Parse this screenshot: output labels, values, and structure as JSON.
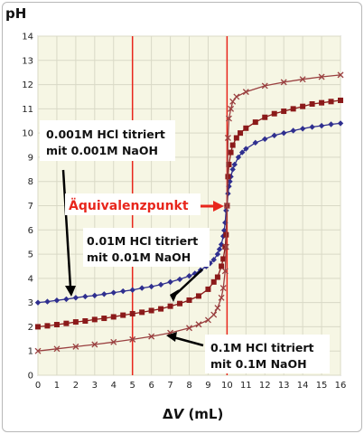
{
  "chart_data": {
    "type": "line",
    "title": "",
    "ylabel": "pH",
    "xlabel_delta": "Δ",
    "xlabel_var": "V",
    "xlabel_unit": " (mL)",
    "xlim": [
      0,
      16
    ],
    "ylim": [
      0,
      14
    ],
    "xticks": [
      0,
      1,
      2,
      3,
      4,
      5,
      6,
      7,
      8,
      9,
      10,
      11,
      12,
      13,
      14,
      15,
      16
    ],
    "yticks": [
      0,
      1,
      2,
      3,
      4,
      5,
      6,
      7,
      8,
      9,
      10,
      11,
      12,
      13,
      14
    ],
    "grid": true,
    "reference_lines_x": [
      5,
      10
    ],
    "series": [
      {
        "name": "0.001M HCl titriert mit 0.001M NaOH",
        "color": "#2f2f8f",
        "marker": "diamond",
        "x": [
          0,
          0.5,
          1,
          1.5,
          2,
          2.5,
          3,
          3.5,
          4,
          4.5,
          5,
          5.5,
          6,
          6.5,
          7,
          7.5,
          8,
          8.3,
          8.6,
          8.9,
          9.1,
          9.3,
          9.5,
          9.6,
          9.7,
          9.8,
          9.85,
          9.9,
          9.95,
          10,
          10.05,
          10.1,
          10.15,
          10.2,
          10.3,
          10.4,
          10.6,
          10.8,
          11,
          11.5,
          12,
          12.5,
          13,
          13.5,
          14,
          14.5,
          15,
          15.5,
          16
        ],
        "y": [
          3.0,
          3.04,
          3.09,
          3.14,
          3.2,
          3.25,
          3.29,
          3.35,
          3.41,
          3.47,
          3.52,
          3.6,
          3.66,
          3.74,
          3.85,
          3.96,
          4.1,
          4.2,
          4.34,
          4.49,
          4.62,
          4.77,
          5.0,
          5.2,
          5.4,
          5.74,
          5.98,
          6.3,
          6.8,
          7.0,
          7.5,
          7.8,
          8.0,
          8.2,
          8.5,
          8.7,
          9.0,
          9.2,
          9.35,
          9.6,
          9.75,
          9.9,
          10.0,
          10.1,
          10.18,
          10.25,
          10.3,
          10.36,
          10.4
        ]
      },
      {
        "name": "0.01M HCl titriert mit 0.01M NaOH",
        "color": "#8b1a1a",
        "marker": "square",
        "x": [
          0,
          0.5,
          1,
          1.5,
          2,
          2.5,
          3,
          3.5,
          4,
          4.5,
          5,
          5.5,
          6,
          6.5,
          7,
          7.5,
          8,
          8.5,
          9,
          9.3,
          9.5,
          9.7,
          9.8,
          9.9,
          9.95,
          10,
          10.05,
          10.1,
          10.2,
          10.3,
          10.5,
          10.7,
          11,
          11.5,
          12,
          12.5,
          13,
          13.5,
          14,
          14.5,
          15,
          15.5,
          16
        ],
        "y": [
          2.0,
          2.04,
          2.09,
          2.14,
          2.2,
          2.24,
          2.3,
          2.35,
          2.41,
          2.48,
          2.54,
          2.6,
          2.67,
          2.74,
          2.85,
          2.96,
          3.1,
          3.27,
          3.55,
          3.85,
          4.05,
          4.5,
          4.8,
          5.3,
          5.8,
          7.0,
          8.2,
          8.7,
          9.2,
          9.5,
          9.8,
          10.0,
          10.2,
          10.45,
          10.65,
          10.8,
          10.9,
          11.0,
          11.1,
          11.2,
          11.25,
          11.3,
          11.35
        ]
      },
      {
        "name": "0.1M HCl titriert mit 0.1M NaOH",
        "color": "#9a4040",
        "marker": "x",
        "x": [
          0,
          1,
          2,
          3,
          4,
          5,
          6,
          7,
          8,
          8.5,
          9,
          9.3,
          9.5,
          9.7,
          9.8,
          9.9,
          9.95,
          10,
          10.05,
          10.1,
          10.2,
          10.3,
          10.5,
          11,
          12,
          13,
          14,
          15,
          16
        ],
        "y": [
          1.0,
          1.09,
          1.18,
          1.27,
          1.37,
          1.48,
          1.6,
          1.75,
          1.95,
          2.1,
          2.28,
          2.5,
          2.78,
          3.2,
          3.6,
          4.3,
          5.3,
          7.0,
          9.8,
          10.6,
          11.0,
          11.3,
          11.5,
          11.7,
          11.95,
          12.1,
          12.22,
          12.32,
          12.4
        ]
      }
    ],
    "annotations": {
      "a001_line1": "0.001M HCl titriert",
      "a001_line2": "mit 0.001M NaOH",
      "a01_line1": "0.01M HCl titriert",
      "a01_line2": "mit 0.01M NaOH",
      "a1_line1": "0.1M HCl titriert",
      "a1_line2": "mit 0.1M NaOH",
      "equivalence": "Äquivalenzpunkt"
    },
    "colors": {
      "plot_background": "#f6f6e4",
      "grid": "#d9d9c6",
      "reference_line": "#e8261c",
      "annotation_text_red": "#e8261c"
    }
  }
}
